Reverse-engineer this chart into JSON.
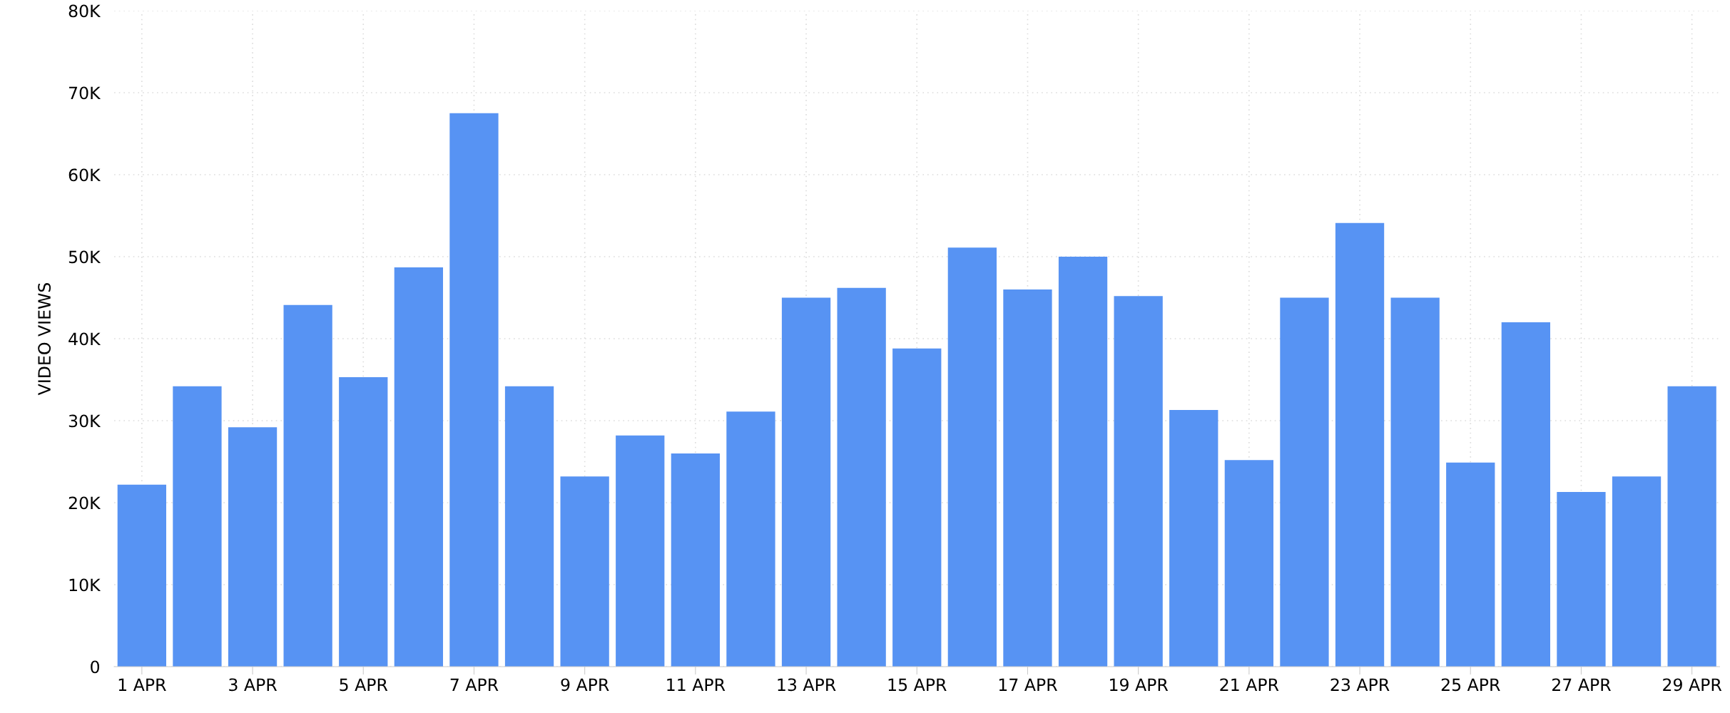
{
  "chart_data": {
    "type": "bar",
    "ylabel": "VIDEO VIEWS",
    "categories": [
      "1 APR",
      null,
      "3 APR",
      null,
      "5 APR",
      null,
      "7 APR",
      null,
      "9 APR",
      null,
      "11 APR",
      null,
      "13 APR",
      null,
      "15 APR",
      null,
      "17 APR",
      null,
      "19 APR",
      null,
      "21 APR",
      null,
      "23 APR",
      null,
      "25 APR",
      null,
      "27 APR",
      null,
      "29 APR"
    ],
    "values": [
      22200,
      34200,
      29200,
      44100,
      35300,
      48700,
      67500,
      34200,
      23200,
      28200,
      26000,
      31100,
      45000,
      46200,
      38800,
      51100,
      46000,
      50000,
      45200,
      31300,
      25200,
      45000,
      54100,
      45000,
      24900,
      42000,
      21300,
      23200,
      34200
    ],
    "color": "#5793f3",
    "ylim": [
      0,
      80000
    ],
    "yticks": [
      0,
      {
        "value": 10000,
        "label": "10K"
      },
      {
        "value": 20000,
        "label": "20K"
      },
      {
        "value": 30000,
        "label": "30K"
      },
      {
        "value": 40000,
        "label": "40K"
      },
      {
        "value": 50000,
        "label": "50K"
      },
      {
        "value": 60000,
        "label": "60K"
      },
      {
        "value": 70000,
        "label": "70K"
      },
      {
        "value": 80000,
        "label": "80K"
      }
    ],
    "grid": true
  }
}
